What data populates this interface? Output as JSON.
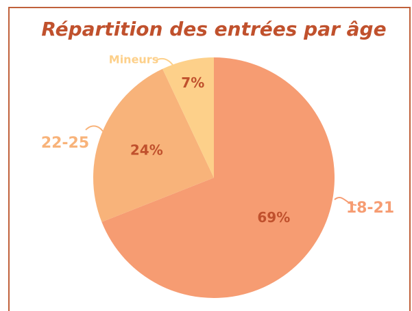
{
  "chart_data": {
    "type": "pie",
    "title": "Répartition des entrées par âge",
    "categories": [
      "18-21",
      "22-25",
      "Mineurs"
    ],
    "values": [
      69,
      24,
      7
    ],
    "value_labels": [
      "69%",
      "24%",
      "7%"
    ],
    "colors": [
      "#f69c72",
      "#f8b37a",
      "#fdd08a"
    ],
    "value_label_color": "#c0512d"
  }
}
